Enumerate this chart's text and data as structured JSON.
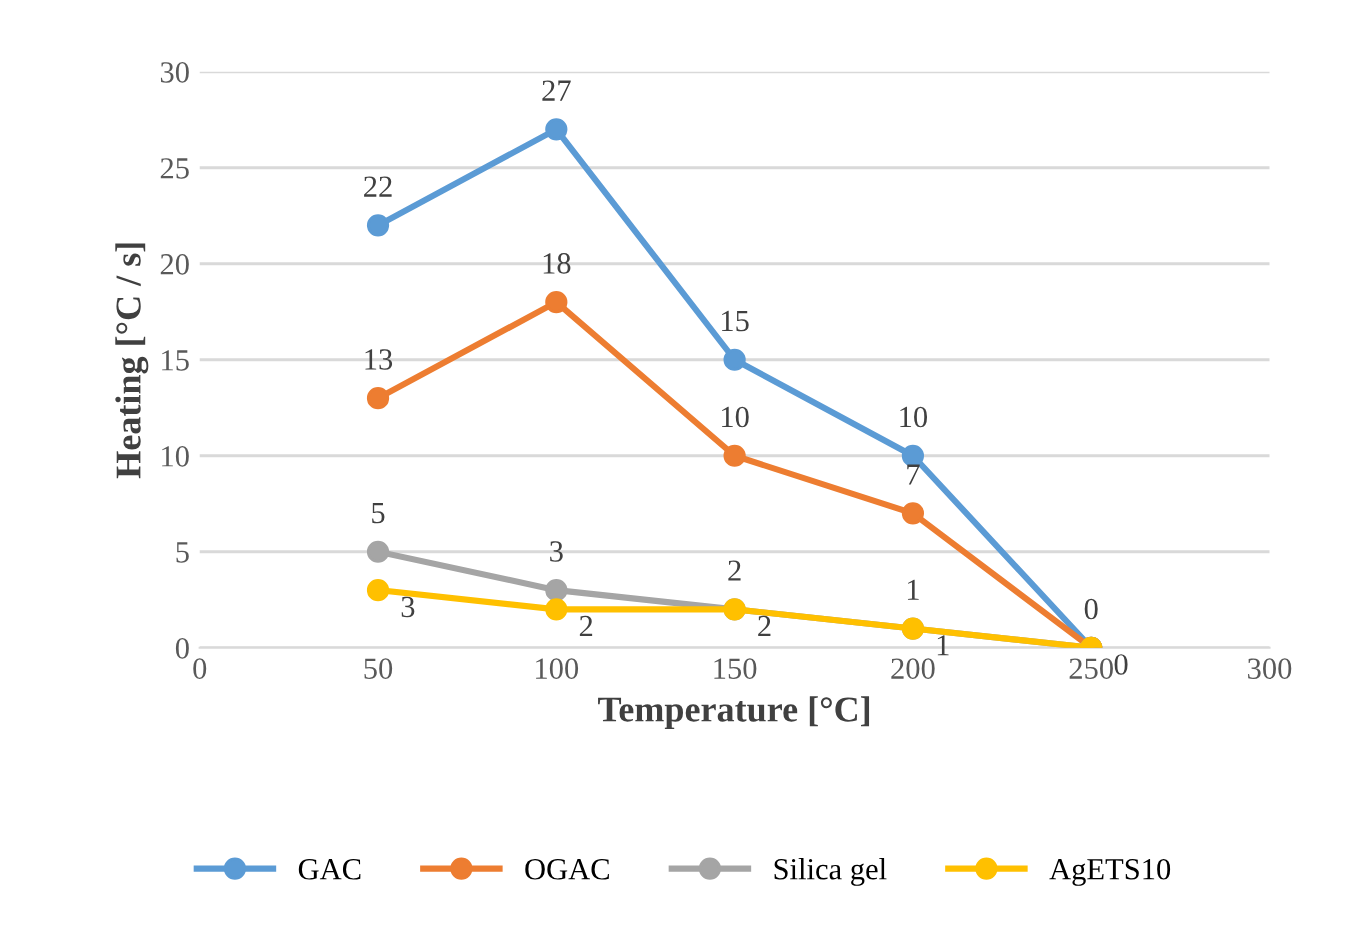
{
  "chart_data": {
    "type": "line",
    "xlabel": "Temperature [°C]",
    "ylabel": "Heating [°C / s]",
    "x": [
      50,
      100,
      150,
      200,
      250
    ],
    "series": [
      {
        "name": "GAC",
        "color": "#5b9bd5",
        "values": [
          22,
          27,
          15,
          10,
          0
        ]
      },
      {
        "name": "OGAC",
        "color": "#ed7d31",
        "values": [
          13,
          18,
          10,
          7,
          0
        ],
        "value_labels": [
          "13",
          "18",
          "10",
          "7",
          null
        ]
      },
      {
        "name": "Silica gel",
        "color": "#a5a5a5",
        "values": [
          5,
          3,
          2,
          1,
          0
        ],
        "value_labels": [
          "5",
          "3",
          "2",
          "1",
          null
        ]
      },
      {
        "name": "AgETS10",
        "color": "#ffc000",
        "values": [
          3,
          2,
          2,
          1,
          0
        ]
      }
    ],
    "xlim": [
      0,
      300
    ],
    "xticks": [
      0,
      50,
      100,
      150,
      200,
      250,
      300
    ],
    "ylim": [
      0,
      30
    ],
    "yticks": [
      0,
      5,
      10,
      15,
      20,
      25,
      30
    ],
    "grid": "y",
    "legend": "bottom",
    "marker": "circle",
    "line_style": "solid",
    "data_labels": true
  }
}
